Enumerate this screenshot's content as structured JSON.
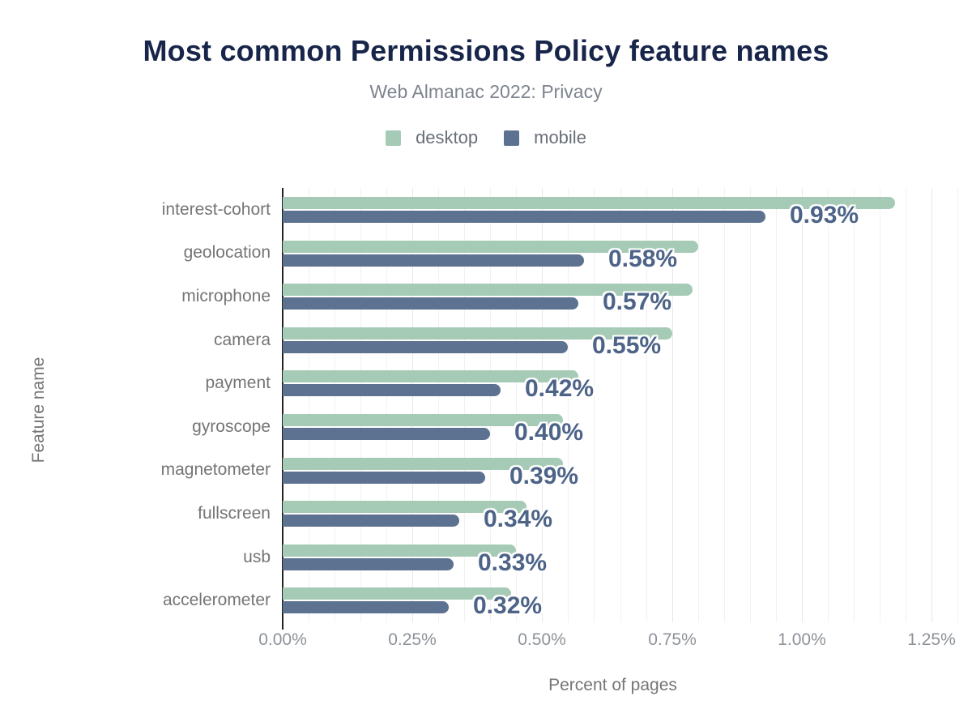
{
  "chart_data": {
    "type": "bar",
    "orientation": "horizontal",
    "title": "Most common Permissions Policy feature names",
    "subtitle": "Web Almanac 2022: Privacy",
    "xlabel": "Percent of pages",
    "ylabel": "Feature name",
    "xlim": [
      0,
      1.25
    ],
    "x_ticks": [
      "0.00%",
      "0.25%",
      "0.50%",
      "0.75%",
      "1.00%",
      "1.25%"
    ],
    "grid": "vertical, minor every 0.05%, major every 0.25%",
    "legend_position": "top-center",
    "legend": [
      {
        "name": "desktop",
        "color": "#a5cab5"
      },
      {
        "name": "mobile",
        "color": "#5d7190"
      }
    ],
    "categories": [
      "interest-cohort",
      "geolocation",
      "microphone",
      "camera",
      "payment",
      "gyroscope",
      "magnetometer",
      "fullscreen",
      "usb",
      "accelerometer"
    ],
    "series": [
      {
        "name": "desktop",
        "values": [
          1.18,
          0.8,
          0.79,
          0.75,
          0.57,
          0.54,
          0.54,
          0.47,
          0.45,
          0.44
        ]
      },
      {
        "name": "mobile",
        "values": [
          0.93,
          0.58,
          0.57,
          0.55,
          0.42,
          0.4,
          0.39,
          0.34,
          0.33,
          0.32
        ]
      }
    ],
    "bar_labels": [
      "0.93%",
      "0.58%",
      "0.57%",
      "0.55%",
      "0.42%",
      "0.40%",
      "0.39%",
      "0.34%",
      "0.33%",
      "0.32%"
    ],
    "colors": {
      "title": "#18254a",
      "subtitle": "#7e848e",
      "axis_title": "#757575",
      "category_label": "#757575",
      "tick_label": "#8d9299",
      "bar_label": "#4d6488",
      "axis_line": "#222222",
      "gridline_minor": "#f1f1f1",
      "gridline_major": "#e7e7e7"
    }
  }
}
